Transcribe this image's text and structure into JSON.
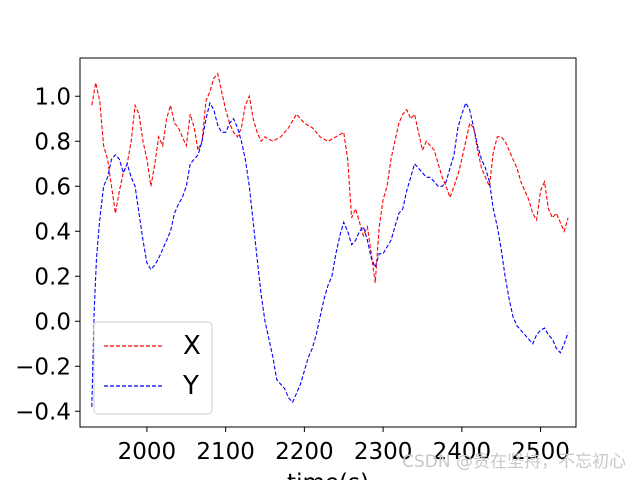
{
  "watermark": "CSDN @贵在坚持，不忘初心",
  "chart_data": {
    "type": "line",
    "xlabel": "time(s)",
    "ylabel": "",
    "title": "",
    "xlim": [
      1915,
      2545
    ],
    "ylim": [
      -0.47,
      1.17
    ],
    "x_ticks": [
      2000,
      2100,
      2200,
      2300,
      2400,
      2500
    ],
    "y_ticks": [
      -0.4,
      -0.2,
      0.0,
      0.2,
      0.4,
      0.6,
      0.8,
      1.0
    ],
    "x_tick_labels": [
      "2000",
      "2100",
      "2200",
      "2300",
      "2400",
      "2500"
    ],
    "y_tick_labels": [
      "−0.4",
      "−0.2",
      "0.0",
      "0.2",
      "0.4",
      "0.6",
      "0.8",
      "1.0"
    ],
    "grid": false,
    "legend_position": "lower-left",
    "series": [
      {
        "name": "X",
        "color": "#ff0000",
        "style": "dashed",
        "x": [
          1930,
          1935,
          1940,
          1945,
          1950,
          1955,
          1960,
          1965,
          1970,
          1975,
          1980,
          1985,
          1990,
          1995,
          2000,
          2005,
          2010,
          2015,
          2020,
          2025,
          2030,
          2035,
          2040,
          2045,
          2050,
          2055,
          2060,
          2065,
          2070,
          2075,
          2080,
          2085,
          2090,
          2095,
          2100,
          2105,
          2110,
          2115,
          2120,
          2125,
          2130,
          2135,
          2140,
          2145,
          2150,
          2160,
          2170,
          2180,
          2190,
          2195,
          2200,
          2210,
          2220,
          2230,
          2240,
          2250,
          2255,
          2260,
          2265,
          2270,
          2275,
          2280,
          2285,
          2290,
          2295,
          2300,
          2305,
          2310,
          2315,
          2320,
          2325,
          2330,
          2335,
          2340,
          2345,
          2350,
          2355,
          2360,
          2365,
          2370,
          2375,
          2380,
          2385,
          2390,
          2395,
          2400,
          2405,
          2410,
          2415,
          2420,
          2425,
          2430,
          2435,
          2440,
          2445,
          2450,
          2455,
          2460,
          2465,
          2470,
          2475,
          2480,
          2485,
          2490,
          2495,
          2500,
          2505,
          2510,
          2515,
          2520,
          2525,
          2530,
          2535
        ],
        "y": [
          0.96,
          1.06,
          0.98,
          0.78,
          0.72,
          0.6,
          0.48,
          0.58,
          0.66,
          0.7,
          0.8,
          0.96,
          0.92,
          0.8,
          0.72,
          0.6,
          0.7,
          0.82,
          0.78,
          0.9,
          0.96,
          0.88,
          0.86,
          0.82,
          0.78,
          0.92,
          0.86,
          0.76,
          0.8,
          0.98,
          1.02,
          1.08,
          1.1,
          1.02,
          0.94,
          0.88,
          0.84,
          0.82,
          0.86,
          0.96,
          1.0,
          0.9,
          0.84,
          0.8,
          0.82,
          0.8,
          0.82,
          0.86,
          0.92,
          0.9,
          0.88,
          0.86,
          0.82,
          0.8,
          0.82,
          0.84,
          0.72,
          0.46,
          0.5,
          0.44,
          0.38,
          0.42,
          0.3,
          0.17,
          0.42,
          0.54,
          0.6,
          0.72,
          0.8,
          0.88,
          0.92,
          0.94,
          0.9,
          0.92,
          0.84,
          0.76,
          0.8,
          0.78,
          0.76,
          0.7,
          0.64,
          0.6,
          0.55,
          0.6,
          0.65,
          0.72,
          0.8,
          0.88,
          0.86,
          0.76,
          0.68,
          0.64,
          0.6,
          0.75,
          0.82,
          0.82,
          0.8,
          0.76,
          0.72,
          0.68,
          0.62,
          0.58,
          0.54,
          0.48,
          0.45,
          0.58,
          0.62,
          0.5,
          0.46,
          0.48,
          0.44,
          0.4,
          0.46
        ]
      },
      {
        "name": "Y",
        "color": "#0000ff",
        "style": "dashed",
        "x": [
          1930,
          1933,
          1936,
          1940,
          1945,
          1950,
          1955,
          1960,
          1965,
          1970,
          1975,
          1980,
          1985,
          1990,
          1995,
          2000,
          2005,
          2010,
          2015,
          2020,
          2025,
          2030,
          2035,
          2040,
          2045,
          2050,
          2055,
          2060,
          2065,
          2070,
          2075,
          2080,
          2085,
          2090,
          2095,
          2100,
          2105,
          2110,
          2115,
          2120,
          2125,
          2130,
          2135,
          2140,
          2145,
          2150,
          2155,
          2160,
          2165,
          2170,
          2175,
          2180,
          2185,
          2190,
          2195,
          2200,
          2205,
          2210,
          2215,
          2220,
          2225,
          2230,
          2235,
          2240,
          2245,
          2250,
          2255,
          2260,
          2265,
          2270,
          2275,
          2280,
          2285,
          2290,
          2295,
          2300,
          2305,
          2310,
          2315,
          2320,
          2325,
          2330,
          2335,
          2340,
          2345,
          2350,
          2355,
          2360,
          2365,
          2370,
          2375,
          2380,
          2385,
          2390,
          2395,
          2400,
          2405,
          2410,
          2415,
          2420,
          2425,
          2430,
          2435,
          2440,
          2445,
          2450,
          2455,
          2460,
          2465,
          2470,
          2475,
          2480,
          2485,
          2490,
          2495,
          2500,
          2505,
          2510,
          2515,
          2520,
          2525,
          2530,
          2535
        ],
        "y": [
          -0.38,
          0.05,
          0.28,
          0.45,
          0.6,
          0.64,
          0.72,
          0.74,
          0.72,
          0.66,
          0.7,
          0.64,
          0.6,
          0.48,
          0.36,
          0.26,
          0.23,
          0.25,
          0.28,
          0.32,
          0.36,
          0.4,
          0.48,
          0.52,
          0.55,
          0.6,
          0.7,
          0.72,
          0.74,
          0.8,
          0.9,
          0.97,
          0.94,
          0.87,
          0.84,
          0.84,
          0.88,
          0.9,
          0.86,
          0.8,
          0.72,
          0.6,
          0.44,
          0.28,
          0.12,
          0.0,
          -0.08,
          -0.16,
          -0.26,
          -0.28,
          -0.3,
          -0.34,
          -0.36,
          -0.32,
          -0.28,
          -0.22,
          -0.16,
          -0.12,
          -0.06,
          0.02,
          0.1,
          0.16,
          0.2,
          0.3,
          0.38,
          0.44,
          0.4,
          0.34,
          0.36,
          0.4,
          0.42,
          0.36,
          0.28,
          0.24,
          0.3,
          0.3,
          0.33,
          0.36,
          0.42,
          0.48,
          0.5,
          0.58,
          0.64,
          0.7,
          0.68,
          0.66,
          0.64,
          0.64,
          0.62,
          0.6,
          0.6,
          0.62,
          0.68,
          0.74,
          0.86,
          0.92,
          0.97,
          0.94,
          0.86,
          0.78,
          0.72,
          0.68,
          0.62,
          0.5,
          0.42,
          0.32,
          0.2,
          0.1,
          0.02,
          -0.02,
          -0.04,
          -0.06,
          -0.08,
          -0.1,
          -0.06,
          -0.04,
          -0.03,
          -0.06,
          -0.08,
          -0.12,
          -0.14,
          -0.1,
          -0.05
        ]
      }
    ]
  }
}
